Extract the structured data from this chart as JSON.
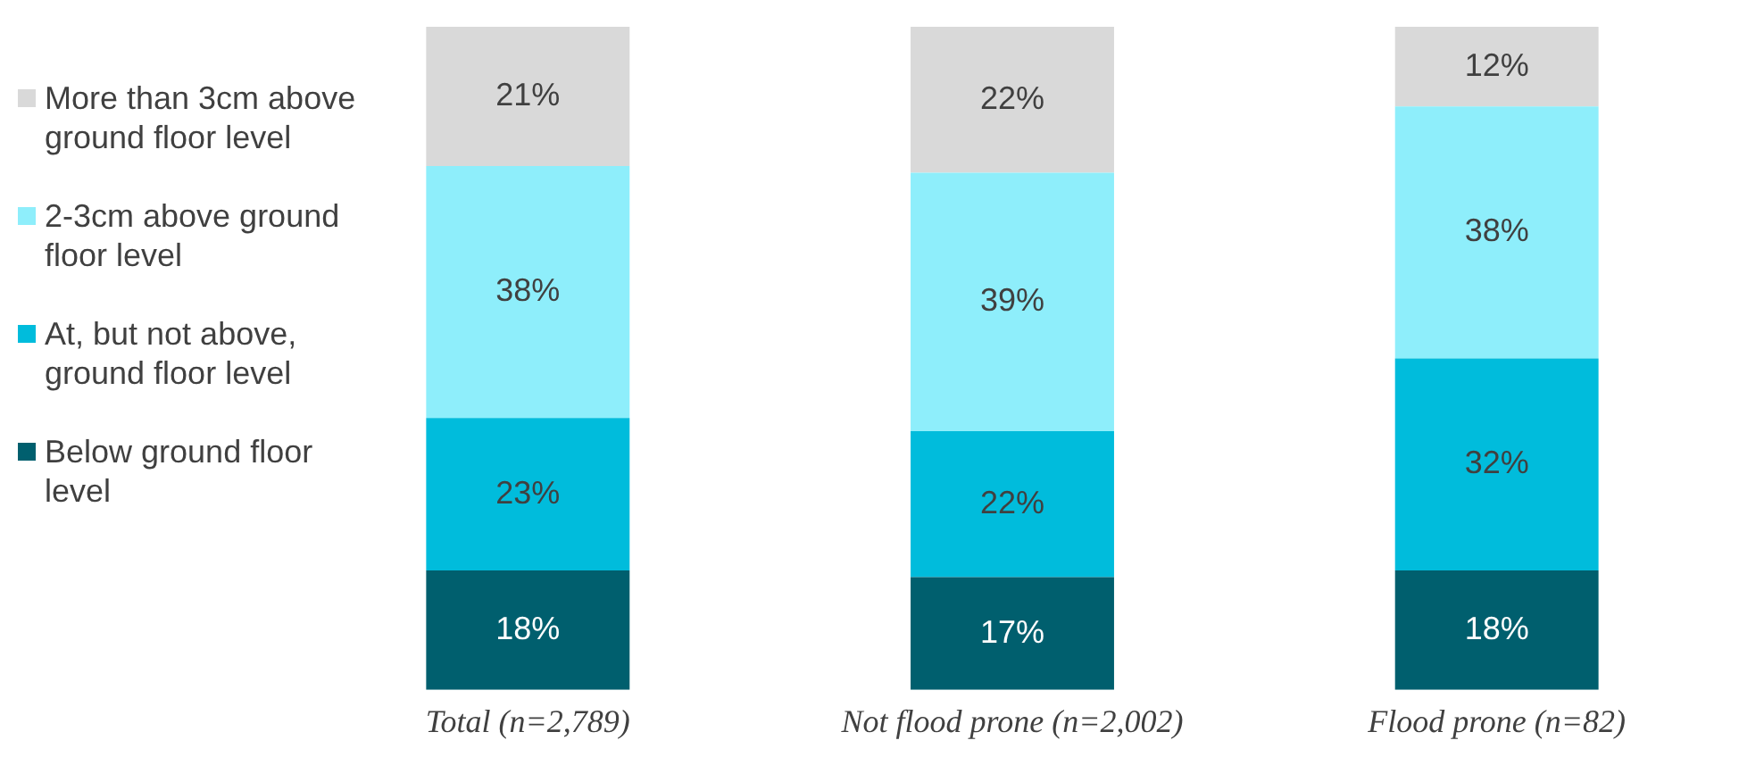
{
  "chart_data": {
    "type": "bar",
    "stacked": true,
    "categories": [
      "Total (n=2,789)",
      "Not flood prone (n=2,002)",
      "Flood prone (n=82)"
    ],
    "series": [
      {
        "name": "Below ground floor level",
        "color": "#005f6e",
        "values": [
          18,
          17,
          18
        ],
        "value_labels": [
          "18%",
          "17%",
          "18%"
        ]
      },
      {
        "name": "At, but not above, ground floor level",
        "color": "#00bcdc",
        "values": [
          23,
          22,
          32
        ],
        "value_labels": [
          "23%",
          "22%",
          "32%"
        ]
      },
      {
        "name": "2-3cm above ground floor level",
        "color": "#8eeefb",
        "values": [
          38,
          39,
          38
        ],
        "value_labels": [
          "38%",
          "39%",
          "38%"
        ]
      },
      {
        "name": "More than 3cm above ground floor level",
        "color": "#d9d9d9",
        "values": [
          21,
          22,
          12
        ],
        "value_labels": [
          "21%",
          "22%",
          "12%"
        ]
      }
    ],
    "legend": "left",
    "grid": false
  }
}
